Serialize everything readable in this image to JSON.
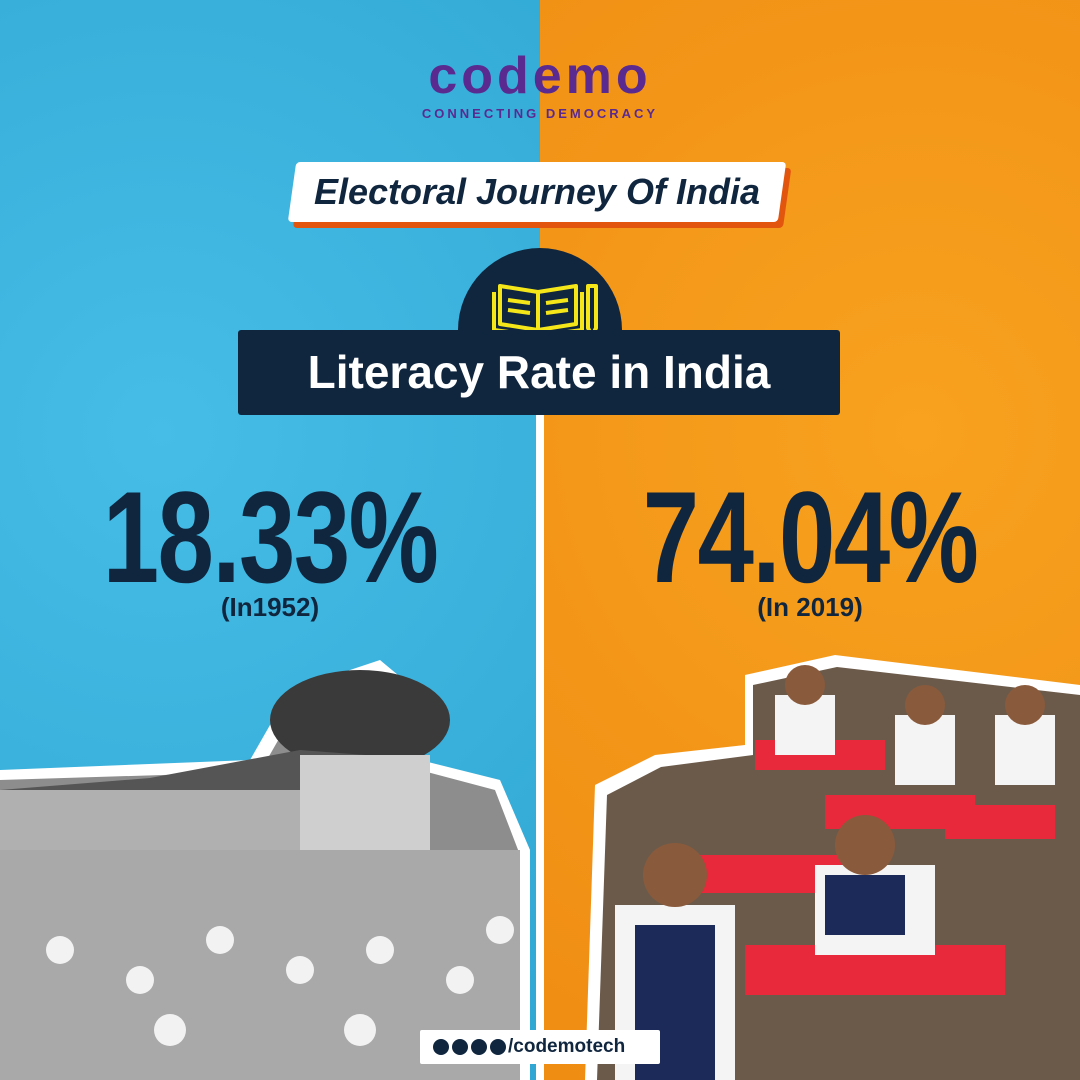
{
  "logo": {
    "name": "codemo",
    "tagline": "CONNECTING DEMOCRACY"
  },
  "banner": {
    "title": "Electoral Journey Of India"
  },
  "heading": "Literacy Rate in India",
  "comparison": [
    {
      "value": "18.33%",
      "caption": "(In1952)"
    },
    {
      "value": "74.04%",
      "caption": "(In 2019)"
    }
  ],
  "footer": {
    "handle": "/codemotech"
  }
}
